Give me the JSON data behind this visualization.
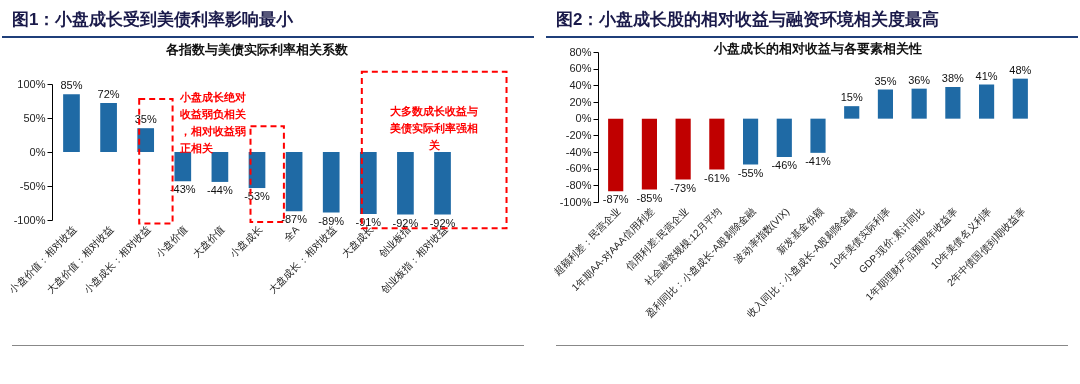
{
  "chart_data": [
    {
      "type": "bar",
      "title": "图1：小盘成长受到美债利率影响最小",
      "subtitle": "各指数与美债实际利率相关系数",
      "categories": [
        "小盘价值：相对收益",
        "大盘价值：相对收益",
        "小盘成长：相对收益",
        "小盘价值",
        "大盘价值",
        "小盘成长",
        "全A",
        "大盘成长：相对收益",
        "大盘成长",
        "创业板指",
        "创业板指：相对收益"
      ],
      "values": [
        85,
        72,
        35,
        -43,
        -44,
        -53,
        -87,
        -89,
        -91,
        -92,
        -92
      ],
      "value_labels": [
        "85%",
        "72%",
        "35%",
        "-43%",
        "-44%",
        "-53%",
        "-87%",
        "-89%",
        "-91%",
        "-92%",
        "-92%"
      ],
      "color": "#1f6aa5",
      "ylim": [
        -100,
        100
      ],
      "yticks": [
        {
          "value": -100,
          "label": "-100%"
        },
        {
          "value": -50,
          "label": "-50%"
        },
        {
          "value": 0,
          "label": "0%"
        },
        {
          "value": 50,
          "label": "50%"
        },
        {
          "value": 100,
          "label": "100%"
        }
      ],
      "annotations": [
        "小盘成长绝对收益弱负相关，相对收益弱正相关",
        "大多数成长收益与美债实际利率强相关"
      ],
      "grid": false
    },
    {
      "type": "bar",
      "title": "图2：小盘成长股的相对收益与融资环境相关度最高",
      "subtitle": "小盘成长的相对收益与各要素相关性",
      "categories": [
        "超额利差：民营企业",
        "1年期AA-对AAA信用利差",
        "信用利差:民营企业",
        "社会融资规模:12月平均",
        "盈利同比：小盘成长-A股剔除金融",
        "波动率指数(VIX)",
        "新发基金份额",
        "收入同比：小盘成长-A股剔除金融",
        "10年美债实际利率",
        "GDP:现价:累计同比",
        "1年期理财产品预期年收益率",
        "10年美债名义利率",
        "2年中债国债到期收益率"
      ],
      "values": [
        -87,
        -85,
        -73,
        -61,
        -55,
        -46,
        -41,
        15,
        35,
        36,
        38,
        41,
        48
      ],
      "value_labels": [
        "-87%",
        "-85%",
        "-73%",
        "-61%",
        "-55%",
        "-46%",
        "-41%",
        "15%",
        "35%",
        "36%",
        "38%",
        "41%",
        "48%"
      ],
      "colors": [
        "#c00000",
        "#c00000",
        "#c00000",
        "#c00000",
        "#1f6aa5",
        "#1f6aa5",
        "#1f6aa5",
        "#1f6aa5",
        "#1f6aa5",
        "#1f6aa5",
        "#1f6aa5",
        "#1f6aa5",
        "#1f6aa5"
      ],
      "ylim": [
        -100,
        80
      ],
      "yticks": [
        {
          "value": -100,
          "label": "-100%"
        },
        {
          "value": -80,
          "label": "-80%"
        },
        {
          "value": -60,
          "label": "-60%"
        },
        {
          "value": -40,
          "label": "-40%"
        },
        {
          "value": -20,
          "label": "-20%"
        },
        {
          "value": 0,
          "label": "0%"
        },
        {
          "value": 20,
          "label": "20%"
        },
        {
          "value": 40,
          "label": "40%"
        },
        {
          "value": 60,
          "label": "60%"
        },
        {
          "value": 80,
          "label": "80%"
        }
      ],
      "grid": false
    }
  ]
}
